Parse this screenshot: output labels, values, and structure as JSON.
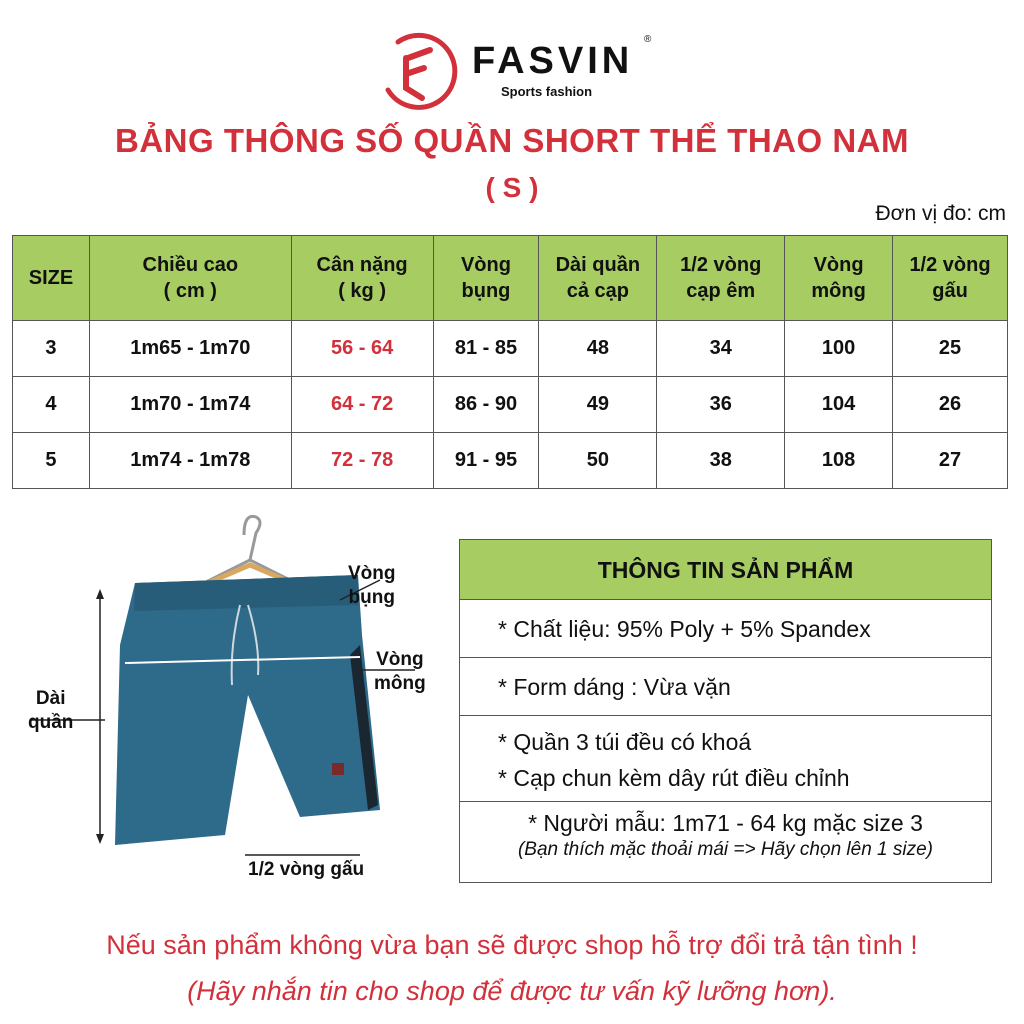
{
  "brand": {
    "name": "FASVIN",
    "registered": "®",
    "tagline": "Sports fashion",
    "accent": "#d2303b"
  },
  "title": "BẢNG THÔNG SỐ QUẦN SHORT THỂ THAO NAM",
  "subtitle": "( S )",
  "unit": "Đơn vị đo: cm",
  "table": {
    "header_color": "#a6cc62",
    "headers": [
      "SIZE",
      "Chiều cao\n( cm )",
      "Cân nặng\n( kg )",
      "Vòng\nbụng",
      "Dài quần\ncả cạp",
      "1/2 vòng\ncạp êm",
      "Vòng\nmông",
      "1/2 vòng\ngấu"
    ],
    "rows": [
      [
        "3",
        "1m65 - 1m70",
        "56 - 64",
        "81 - 85",
        "48",
        "34",
        "100",
        "25"
      ],
      [
        "4",
        "1m70 - 1m74",
        "64 - 72",
        "86 - 90",
        "49",
        "36",
        "104",
        "26"
      ],
      [
        "5",
        "1m74 - 1m78",
        "72 - 78",
        "91 - 95",
        "50",
        "38",
        "108",
        "27"
      ]
    ]
  },
  "diagram": {
    "waist": "Vòng\nbụng",
    "hip": "Vòng\nmông",
    "length": "Dài\nquần",
    "hem": "1/2 vòng gấu",
    "shorts_color": "#2e6a8a"
  },
  "info": {
    "title": "THÔNG TIN SẢN PHẨM",
    "items": [
      "* Chất liệu: 95% Poly + 5% Spandex",
      "* Form dáng : Vừa vặn",
      "* Quần 3 túi đều có khoá",
      "* Cạp chun kèm dây rút điều chỉnh",
      "* Người mẫu: 1m71 - 64 kg mặc size 3"
    ],
    "note": "(Bạn thích mặc thoải mái => Hãy chọn lên 1 size)"
  },
  "footer": {
    "line1": "Nếu sản phẩm không vừa bạn sẽ được shop hỗ trợ đổi trả tận tình !",
    "line2": "(Hãy nhắn tin cho shop để được tư vấn kỹ lưỡng hơn)."
  }
}
